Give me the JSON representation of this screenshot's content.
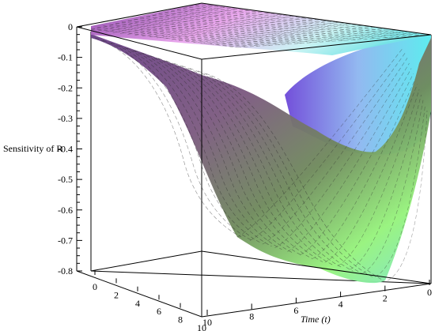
{
  "chart_data": {
    "type": "surface3d",
    "zlabel": "Sensitivity of R",
    "xlabel_main": "Time",
    "xlabel_var": "t",
    "zlim": [
      -0.8,
      0
    ],
    "zticks": [
      "0",
      "-0.1",
      "-0.2",
      "-0.3",
      "-0.4",
      "-0.5",
      "-0.6",
      "-0.7",
      "-0.8"
    ],
    "time_axis": {
      "range": [
        0,
        10
      ],
      "ticks": [
        "10",
        "8",
        "6",
        "4",
        "2",
        "0"
      ]
    },
    "second_axis": {
      "range": [
        0,
        10
      ],
      "ticks": [
        "0",
        "2",
        "4",
        "6",
        "8",
        "10"
      ]
    },
    "surfaces": [
      {
        "name": "",
        "shape": "flat near 0",
        "colors": [
          "#8a5fbf",
          "#e79ae6",
          "#7ee8e8"
        ]
      },
      {
        "name": "",
        "shape": "sigmoid descent to -0.8 then rise",
        "colors": [
          "#6a3d86",
          "#7ab06a",
          "#9bff78",
          "#6fe9e5"
        ]
      }
    ],
    "grid": true
  }
}
